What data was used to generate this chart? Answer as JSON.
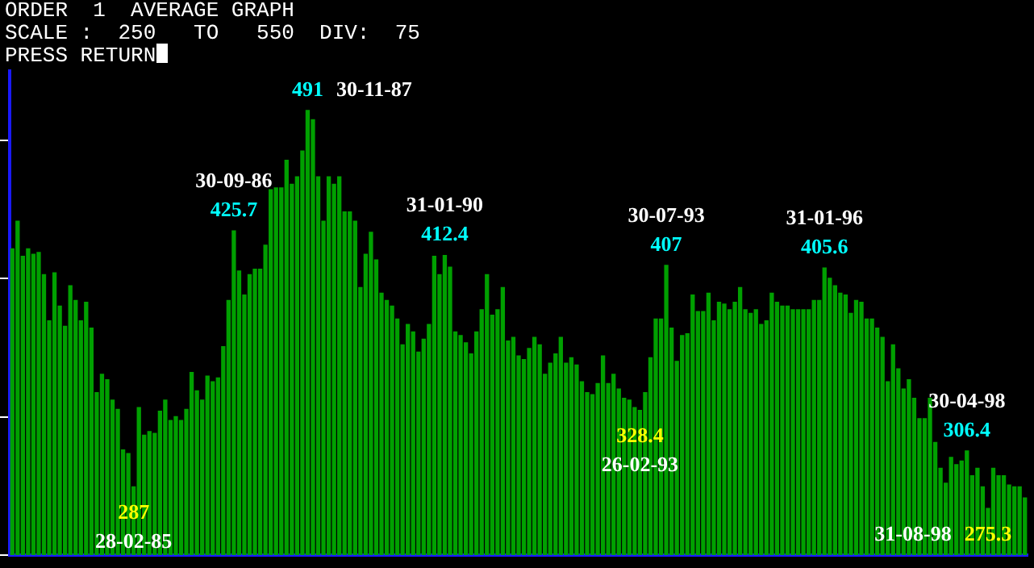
{
  "chart_data": {
    "type": "bar",
    "title": "ORDER  1  AVERAGE GRAPH",
    "subtitle": "SCALE :  250   TO   550  DIV:  75",
    "annotations": [
      "PRESS RETURN",
      "28-02-85",
      "30-09-86",
      "30-11-87",
      "31-01-90",
      "26-02-93",
      "30-07-93",
      "31-01-96",
      "30-04-98",
      "31-08-98"
    ],
    "categories": [
      null,
      null,
      null,
      null,
      null,
      null,
      null,
      null,
      null,
      null,
      null,
      null,
      null,
      null,
      null,
      null,
      null,
      null,
      null,
      null,
      null,
      null,
      null,
      null,
      null,
      null,
      null,
      null,
      null,
      null,
      null,
      null,
      null,
      null,
      null,
      null,
      null,
      null,
      null,
      null,
      null,
      null,
      null,
      null,
      null,
      null,
      null,
      null,
      null,
      null,
      null,
      null,
      null,
      null,
      null,
      null,
      null,
      null,
      null,
      null,
      null,
      null,
      null,
      null,
      null,
      null,
      null,
      null,
      null,
      null,
      null,
      null,
      null,
      null,
      null,
      null,
      null,
      null,
      null,
      null,
      null,
      null,
      null,
      null,
      null,
      null,
      null,
      null,
      null,
      null,
      null,
      null,
      null,
      null,
      null,
      null,
      null,
      null,
      null,
      null,
      null,
      null,
      null,
      null,
      null,
      null,
      null,
      null,
      null,
      null,
      null,
      null,
      null,
      null,
      null,
      null,
      null,
      null,
      null,
      null,
      null,
      null,
      null,
      null,
      null,
      null,
      null,
      null,
      null,
      null,
      null,
      null,
      null,
      null,
      null,
      null,
      null,
      null,
      null,
      null,
      null,
      null,
      null,
      null,
      null,
      null,
      null,
      null,
      null,
      null,
      null,
      null,
      null,
      null,
      null,
      null,
      null,
      null,
      null,
      null,
      null,
      null,
      null,
      null,
      null,
      null,
      null,
      null,
      null,
      null,
      null,
      null,
      null,
      null,
      null,
      null,
      null,
      null,
      null,
      null,
      null,
      null,
      null,
      null,
      null,
      null,
      null,
      null,
      null,
      null,
      null,
      null,
      null
    ],
    "values": [
      416,
      431,
      412,
      416,
      413,
      414,
      402,
      377,
      403,
      385,
      374,
      396,
      388,
      377,
      387,
      373,
      338,
      348,
      345,
      334,
      329,
      307,
      305,
      287,
      330,
      315,
      317,
      316,
      328,
      334,
      323,
      325,
      323,
      329,
      349,
      339,
      334,
      347,
      344,
      346,
      363,
      388,
      425.7,
      404,
      391,
      402,
      405,
      405,
      418,
      448,
      449,
      449,
      464,
      451,
      455,
      469,
      491,
      486,
      455,
      431,
      455,
      451,
      455,
      436,
      436,
      431,
      395,
      413,
      425,
      410,
      392,
      388,
      385,
      378,
      364,
      375,
      371,
      360,
      367,
      375,
      412,
      402,
      412.4,
      406,
      371,
      369,
      365,
      359,
      371,
      383,
      402,
      380,
      383,
      395,
      366,
      368,
      358,
      356,
      362,
      368,
      364,
      348,
      354,
      359,
      368,
      354,
      357,
      353,
      344,
      338,
      337,
      343,
      358,
      343,
      348,
      340,
      335,
      334,
      330,
      328.4,
      338,
      357,
      378,
      378,
      407,
      373,
      355,
      369,
      370,
      391,
      382,
      382,
      392,
      377,
      387,
      386,
      383,
      387,
      395,
      383,
      381,
      383,
      375,
      377,
      392,
      387,
      385,
      385,
      383,
      383,
      383,
      383,
      388,
      388,
      405.6,
      400,
      396,
      392,
      391,
      381,
      388,
      387,
      378,
      378,
      373,
      368,
      344,
      364,
      351,
      340,
      345,
      335,
      324,
      324,
      335,
      311,
      297,
      289,
      303,
      299,
      301,
      306.4,
      293,
      297,
      287,
      275.3,
      297,
      293,
      293,
      288,
      287,
      287,
      281
    ],
    "value_labels": [
      null,
      null,
      null,
      null,
      null,
      null,
      null,
      null,
      null,
      null,
      null,
      null,
      null,
      null,
      null,
      null,
      null,
      null,
      null,
      null,
      null,
      null,
      null,
      "287",
      null,
      null,
      null,
      null,
      null,
      null,
      null,
      null,
      null,
      null,
      null,
      null,
      null,
      null,
      null,
      null,
      null,
      null,
      "425.7",
      null,
      null,
      null,
      null,
      null,
      null,
      null,
      null,
      null,
      null,
      null,
      null,
      null,
      "491",
      null,
      null,
      null,
      null,
      null,
      null,
      null,
      null,
      null,
      null,
      null,
      null,
      null,
      null,
      null,
      null,
      null,
      null,
      null,
      null,
      null,
      null,
      null,
      null,
      null,
      "412.4",
      null,
      null,
      null,
      null,
      null,
      null,
      null,
      null,
      null,
      null,
      null,
      null,
      null,
      null,
      null,
      null,
      null,
      null,
      null,
      null,
      null,
      null,
      null,
      null,
      null,
      null,
      null,
      null,
      null,
      null,
      null,
      null,
      null,
      null,
      null,
      null,
      "328.4",
      null,
      null,
      null,
      null,
      "407",
      null,
      null,
      null,
      null,
      null,
      null,
      null,
      null,
      null,
      null,
      null,
      null,
      null,
      null,
      null,
      null,
      null,
      null,
      null,
      null,
      null,
      null,
      null,
      null,
      null,
      null,
      null,
      null,
      null,
      "405.6",
      null,
      null,
      null,
      null,
      null,
      null,
      null,
      null,
      null,
      null,
      null,
      null,
      null,
      null,
      null,
      null,
      null,
      null,
      null,
      null,
      null,
      null,
      null,
      null,
      null,
      null,
      "306.4",
      null,
      null,
      null,
      "275.3",
      null,
      null,
      null,
      null,
      null,
      null,
      null
    ],
    "color": "#00a000",
    "ylim": [
      250,
      550
    ],
    "yticks": [
      {
        "value": 250,
        "label": null
      },
      {
        "value": 325,
        "label": null
      },
      {
        "value": 400,
        "label": null
      },
      {
        "value": 475,
        "label": null
      },
      {
        "value": 550,
        "label": null
      }
    ],
    "tick_labels": false
  }
}
